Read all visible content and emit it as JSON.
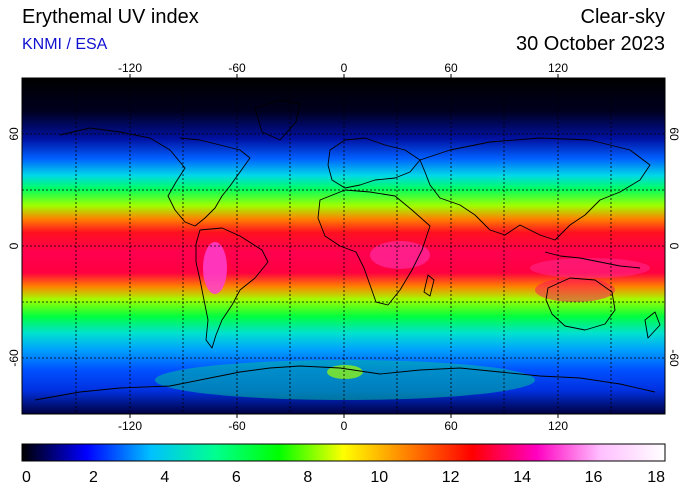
{
  "header": {
    "title": "Erythemal UV index",
    "credit": "KNMI / ESA",
    "mode": "Clear-sky",
    "date": "30 October 2023"
  },
  "map": {
    "projection": "equirectangular",
    "lon_range": [
      -180,
      180
    ],
    "lat_range": [
      -90,
      90
    ],
    "lon_ticks": [
      -120,
      -60,
      0,
      60,
      120
    ],
    "lat_ticks": [
      60,
      0,
      -60
    ],
    "lon_tick_labels": [
      "-120",
      "-60",
      "0",
      "60",
      "120"
    ],
    "lat_tick_labels": [
      "60",
      "0",
      "-60"
    ],
    "grid_lines": true,
    "grid_spacing_deg": 30
  },
  "colorbar": {
    "min": 0,
    "max": 18,
    "tick_labels": [
      "0",
      "2",
      "4",
      "6",
      "8",
      "10",
      "12",
      "14",
      "16",
      "18"
    ],
    "colors": [
      "#000000",
      "#0000ff",
      "#00c0ff",
      "#00ff90",
      "#00ff00",
      "#ffff00",
      "#ff8000",
      "#ff0000",
      "#ff00c0",
      "#ffc0ff",
      "#ffffff"
    ]
  }
}
